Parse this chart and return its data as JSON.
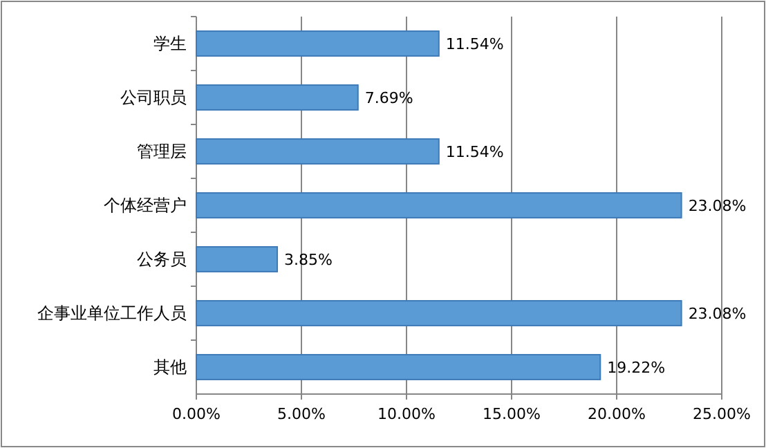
{
  "chart_data": {
    "type": "bar",
    "orientation": "horizontal",
    "categories": [
      "学生",
      "公司职员",
      "管理层",
      "个体经营户",
      "公务员",
      "企事业单位工作人员",
      "其他"
    ],
    "values": [
      11.54,
      7.69,
      11.54,
      23.08,
      3.85,
      23.08,
      19.22
    ],
    "value_labels": [
      "11.54%",
      "7.69%",
      "11.54%",
      "23.08%",
      "3.85%",
      "23.08%",
      "19.22%"
    ],
    "color": "#5b9bd5",
    "xlim": [
      0,
      25
    ],
    "xticks": [
      {
        "value": 0,
        "label": "0.00%"
      },
      {
        "value": 5,
        "label": "5.00%"
      },
      {
        "value": 10,
        "label": "10.00%"
      },
      {
        "value": 15,
        "label": "15.00%"
      },
      {
        "value": 20,
        "label": "20.00%"
      },
      {
        "value": 25,
        "label": "25.00%"
      }
    ],
    "grid": "x"
  }
}
